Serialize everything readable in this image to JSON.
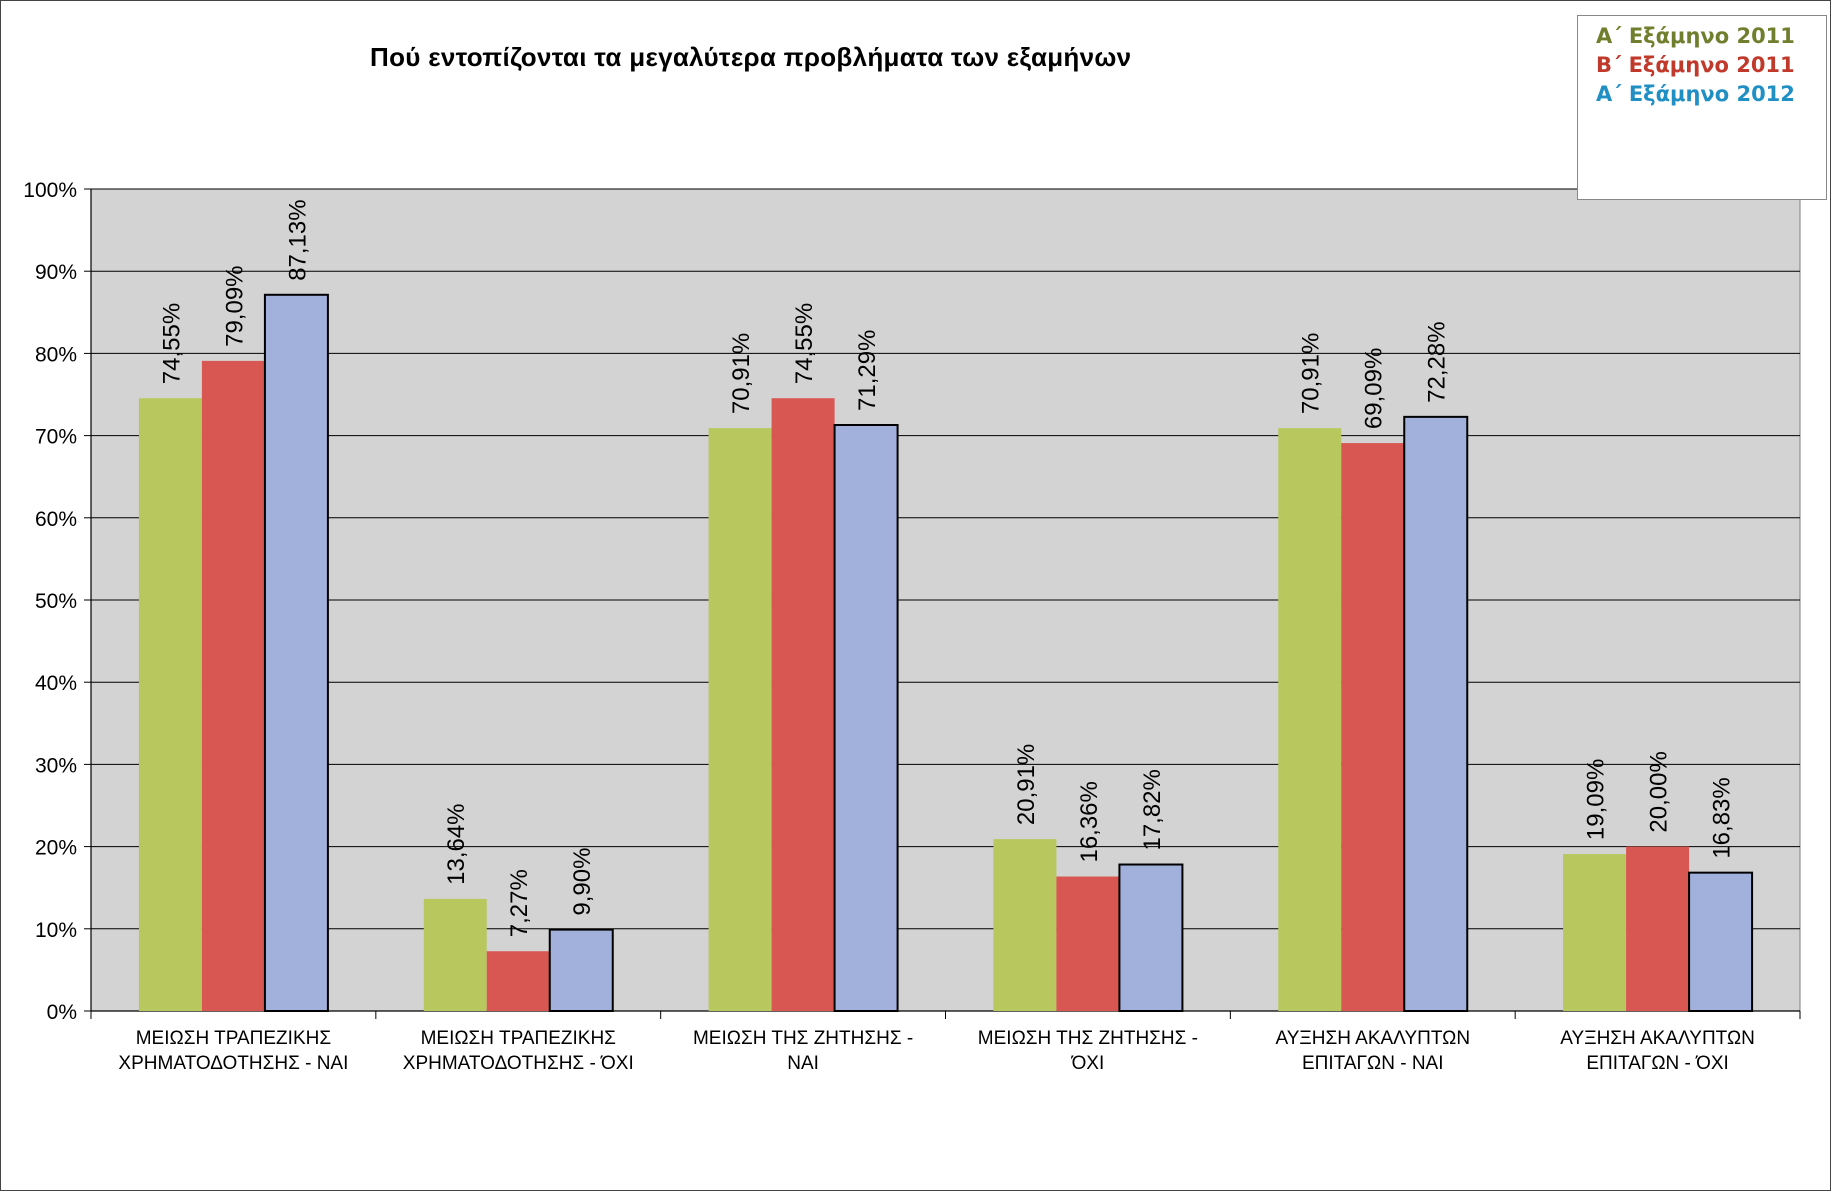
{
  "chart_data": {
    "type": "bar",
    "title": "Πού εντοπίζονται τα μεγαλύτερα προβλήματα των εξαμήνων",
    "xlabel": "",
    "ylabel": "",
    "ylim": [
      0,
      100
    ],
    "y_ticks": [
      "0%",
      "10%",
      "20%",
      "30%",
      "40%",
      "50%",
      "60%",
      "70%",
      "80%",
      "90%",
      "100%"
    ],
    "grid": true,
    "legend_position": "top-right",
    "categories": [
      [
        "ΜΕΙΩΣΗ ΤΡΑΠΕΖΙΚΗΣ",
        "ΧΡΗΜΑΤΟΔΟΤΗΣΗΣ - ΝΑΙ"
      ],
      [
        "ΜΕΙΩΣΗ ΤΡΑΠΕΖΙΚΗΣ",
        "ΧΡΗΜΑΤΟΔΟΤΗΣΗΣ - ΌΧΙ"
      ],
      [
        "ΜΕΙΩΣΗ ΤΗΣ ΖΗΤΗΣΗΣ -",
        "ΝΑΙ"
      ],
      [
        "ΜΕΙΩΣΗ ΤΗΣ ΖΗΤΗΣΗΣ -",
        "ΌΧΙ"
      ],
      [
        "ΑΥΞΗΣΗ ΑΚΑΛΥΠΤΩΝ",
        "ΕΠΙΤΑΓΩΝ - ΝΑΙ"
      ],
      [
        "ΑΥΞΗΣΗ ΑΚΑΛΥΠΤΩΝ",
        "ΕΠΙΤΑΓΩΝ - ΌΧΙ"
      ]
    ],
    "series": [
      {
        "name": "Α΄ Εξάμηνο 2011",
        "color": "#b8c85e",
        "legend_color": "#6f7f2e",
        "values": [
          74.55,
          13.64,
          70.91,
          20.91,
          70.91,
          19.09
        ],
        "labels": [
          "74,55%",
          "13,64%",
          "70,91%",
          "20,91%",
          "70,91%",
          "19,09%"
        ]
      },
      {
        "name": "Β΄ Εξάμηνο 2011",
        "color": "#d95752",
        "legend_color": "#c0392b",
        "values": [
          79.09,
          7.27,
          74.55,
          16.36,
          69.09,
          20.0
        ],
        "labels": [
          "79,09%",
          "7,27%",
          "74,55%",
          "16,36%",
          "69,09%",
          "20,00%"
        ]
      },
      {
        "name": "Α΄ Εξάμηνο 2012",
        "color": "#a2b0dc",
        "legend_color": "#1f8fc4",
        "values": [
          87.13,
          9.9,
          71.29,
          17.82,
          72.28,
          16.83
        ],
        "labels": [
          "87,13%",
          "9,90%",
          "71,29%",
          "17,82%",
          "72,28%",
          "16,83%"
        ]
      }
    ],
    "plot_background": "#d3d3d3"
  }
}
